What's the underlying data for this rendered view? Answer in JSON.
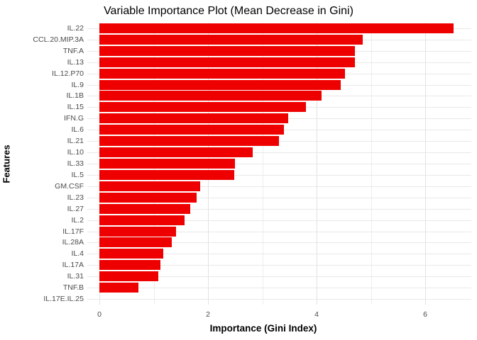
{
  "chart_data": {
    "type": "bar",
    "orientation": "horizontal",
    "title": "Variable Importance Plot (Mean Decrease in Gini)",
    "xlabel": "Importance (Gini Index)",
    "ylabel": "Features",
    "categories": [
      "IL.22",
      "CCL.20.MIP.3A",
      "TNF.A",
      "IL.13",
      "IL.12.P70",
      "IL.9",
      "IL.1B",
      "IL.15",
      "IFN.G",
      "IL.6",
      "IL.21",
      "IL.10",
      "IL.33",
      "IL.5",
      "GM.CSF",
      "IL.23",
      "IL.27",
      "IL.2",
      "IL.17F",
      "IL.28A",
      "IL.4",
      "IL.17A",
      "IL.31",
      "TNF.B",
      "IL.17E.IL.25"
    ],
    "values": [
      6.52,
      4.85,
      4.71,
      4.7,
      4.52,
      4.44,
      4.09,
      3.8,
      3.48,
      3.4,
      3.31,
      2.82,
      2.5,
      2.48,
      1.85,
      1.79,
      1.67,
      1.57,
      1.41,
      1.33,
      1.18,
      1.12,
      1.08,
      0.72,
      0.0
    ],
    "x_ticks": [
      0,
      2,
      4,
      6
    ],
    "x_minor_ticks": [
      1,
      3,
      5
    ],
    "xlim": [
      -0.22,
      6.85
    ],
    "bar_color": "#ee0000",
    "grid": true,
    "gridline_color": "#e8e8e8",
    "axis_text_color": "#4a4a4a",
    "legend": null
  }
}
